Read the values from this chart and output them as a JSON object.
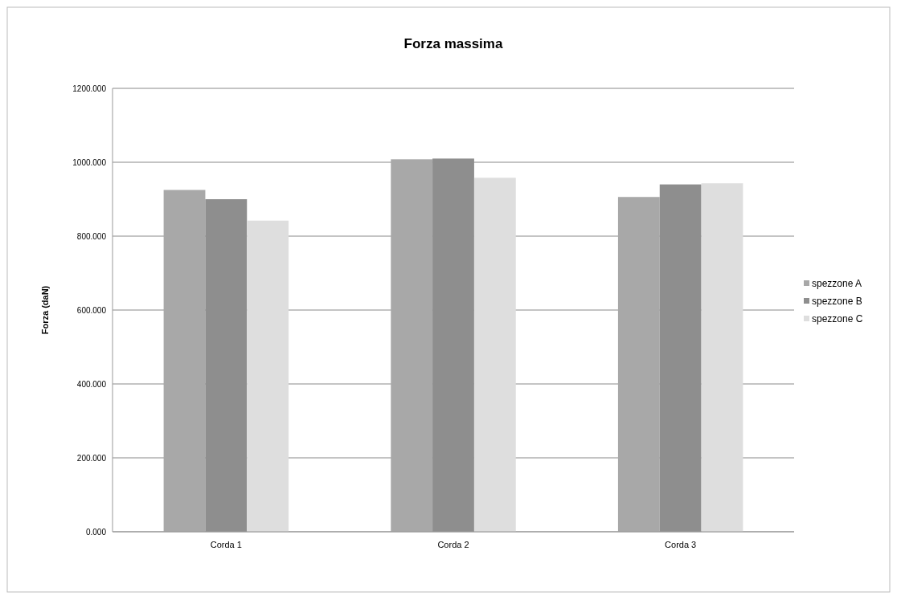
{
  "chart_data": {
    "type": "bar",
    "title": "Forza massima",
    "ylabel": "Forza (daN)",
    "categories": [
      "Corda 1",
      "Corda 2",
      "Corda 3"
    ],
    "series": [
      {
        "name": "spezzone A",
        "color": "#a8a8a8",
        "values": [
          925,
          1008,
          906
        ]
      },
      {
        "name": "spezzone B",
        "color": "#8e8e8e",
        "values": [
          900,
          1010,
          940
        ]
      },
      {
        "name": "spezzone C",
        "color": "#dedede",
        "values": [
          842,
          958,
          943
        ]
      }
    ],
    "ylim": [
      0,
      1200
    ],
    "yticks": [
      {
        "value": 0,
        "label": "0.000"
      },
      {
        "value": 200,
        "label": "200.000"
      },
      {
        "value": 400,
        "label": "400.000"
      },
      {
        "value": 600,
        "label": "600.000"
      },
      {
        "value": 800,
        "label": "800.000"
      },
      {
        "value": 1000,
        "label": "1000.000"
      },
      {
        "value": 1200,
        "label": "1200.000"
      }
    ],
    "grid": "y",
    "legend": "right"
  }
}
